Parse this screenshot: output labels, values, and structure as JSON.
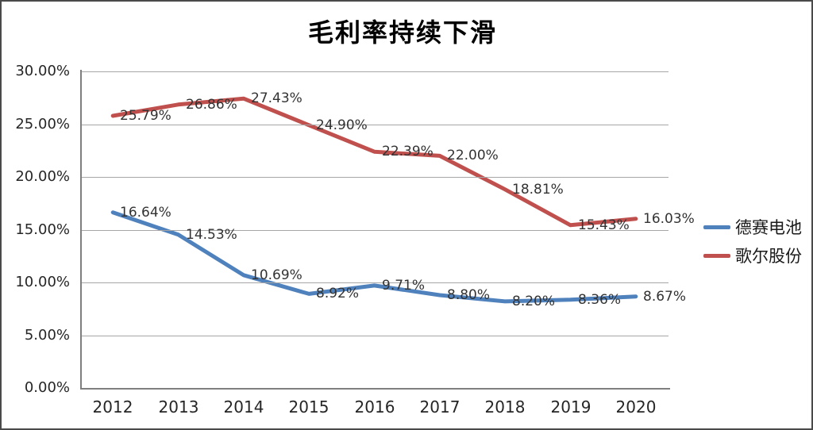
{
  "title": "毛利率持续下滑",
  "chart_data": {
    "type": "line",
    "title": "毛利率持续下滑",
    "categories": [
      "2012",
      "2013",
      "2014",
      "2015",
      "2016",
      "2017",
      "2018",
      "2019",
      "2020"
    ],
    "series": [
      {
        "name": "德赛电池",
        "color": "#4f81bd",
        "values": [
          16.64,
          14.53,
          10.69,
          8.92,
          9.71,
          8.8,
          8.2,
          8.36,
          8.67
        ],
        "data_labels": [
          "16.64%",
          "14.53%",
          "10.69%",
          "8.92%",
          "9.71%",
          "8.80%",
          "8.20%",
          "8.36%",
          "8.67%"
        ]
      },
      {
        "name": "歌尔股份",
        "color": "#c0504d",
        "values": [
          25.79,
          26.86,
          27.43,
          24.9,
          22.39,
          22.0,
          18.81,
          15.43,
          16.03
        ],
        "data_labels": [
          "25.79%",
          "26.86%",
          "27.43%",
          "24.90%",
          "22.39%",
          "22.00%",
          "18.81%",
          "15.43%",
          "16.03%"
        ]
      }
    ],
    "xlabel": "",
    "ylabel": "",
    "ylim": [
      0,
      30
    ],
    "ytick_step": 5,
    "ytick_labels": [
      "0.00%",
      "5.00%",
      "10.00%",
      "15.00%",
      "20.00%",
      "25.00%",
      "30.00%"
    ],
    "grid": true,
    "legend_position": "right",
    "colors": {
      "grid": "#a6a6a6",
      "axis": "#7f7f7f",
      "tick_text": "#262626",
      "data_label_text": "#333333",
      "background": "#ffffff",
      "border": "#4a4a4a"
    }
  }
}
